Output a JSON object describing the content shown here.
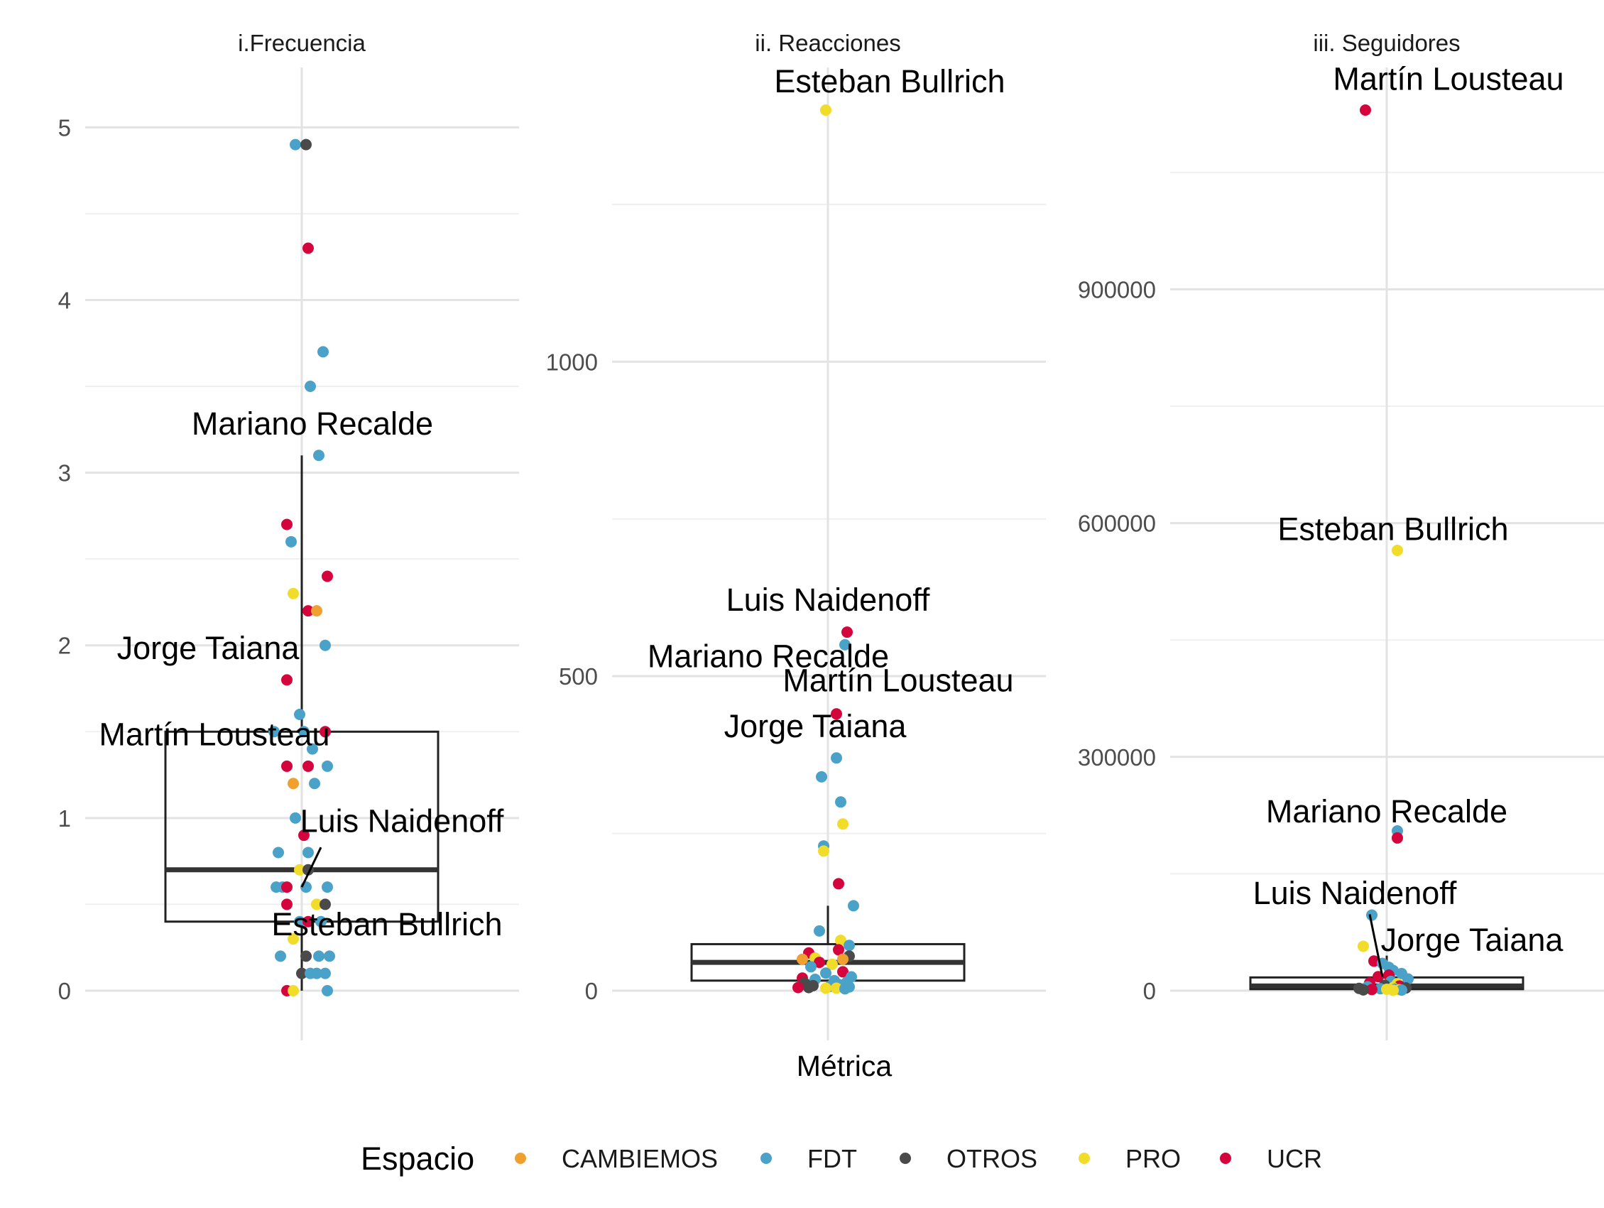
{
  "chart_data": {
    "type": "scatter",
    "x_title": "Métrica",
    "colors": {
      "CAMBIEMOS": "#F0A030",
      "FDT": "#4BA2C9",
      "OTROS": "#4A4A4A",
      "PRO": "#F2DC2A",
      "UCR": "#D4043C"
    },
    "legend": {
      "title": "Espacio",
      "position": "bottom",
      "items": [
        "CAMBIEMOS",
        "FDT",
        "OTROS",
        "PRO",
        "UCR"
      ]
    },
    "panels": [
      {
        "title": "i.Frecuencia",
        "ylim": [
          0,
          5.1
        ],
        "yticks": [
          0,
          1,
          2,
          3,
          4,
          5
        ],
        "box": {
          "q1": 0.4,
          "median": 0.7,
          "q3": 1.5,
          "whisker_low": 0.0,
          "whisker_high": 3.1
        },
        "points": [
          {
            "j": -0.03,
            "v": 4.9,
            "e": "FDT"
          },
          {
            "j": 0.02,
            "v": 4.9,
            "e": "OTROS"
          },
          {
            "j": 0.03,
            "v": 4.3,
            "e": "UCR"
          },
          {
            "j": 0.1,
            "v": 3.7,
            "e": "FDT"
          },
          {
            "j": 0.04,
            "v": 3.5,
            "e": "FDT"
          },
          {
            "j": 0.08,
            "v": 3.1,
            "e": "FDT"
          },
          {
            "j": -0.07,
            "v": 2.7,
            "e": "UCR"
          },
          {
            "j": -0.05,
            "v": 2.6,
            "e": "FDT"
          },
          {
            "j": 0.12,
            "v": 2.4,
            "e": "UCR"
          },
          {
            "j": -0.04,
            "v": 2.3,
            "e": "PRO"
          },
          {
            "j": 0.03,
            "v": 2.2,
            "e": "UCR"
          },
          {
            "j": 0.07,
            "v": 2.2,
            "e": "CAMBIEMOS"
          },
          {
            "j": 0.11,
            "v": 2.0,
            "e": "FDT"
          },
          {
            "j": -0.07,
            "v": 1.8,
            "e": "UCR"
          },
          {
            "j": -0.01,
            "v": 1.6,
            "e": "FDT"
          },
          {
            "j": -0.13,
            "v": 1.5,
            "e": "FDT"
          },
          {
            "j": 0.01,
            "v": 1.5,
            "e": "FDT"
          },
          {
            "j": 0.11,
            "v": 1.5,
            "e": "UCR"
          },
          {
            "j": 0.05,
            "v": 1.4,
            "e": "FDT"
          },
          {
            "j": -0.07,
            "v": 1.3,
            "e": "UCR"
          },
          {
            "j": 0.03,
            "v": 1.3,
            "e": "UCR"
          },
          {
            "j": 0.12,
            "v": 1.3,
            "e": "FDT"
          },
          {
            "j": -0.04,
            "v": 1.2,
            "e": "CAMBIEMOS"
          },
          {
            "j": 0.06,
            "v": 1.2,
            "e": "FDT"
          },
          {
            "j": -0.03,
            "v": 1.0,
            "e": "FDT"
          },
          {
            "j": 0.01,
            "v": 0.9,
            "e": "UCR"
          },
          {
            "j": -0.11,
            "v": 0.8,
            "e": "FDT"
          },
          {
            "j": 0.03,
            "v": 0.8,
            "e": "FDT"
          },
          {
            "j": -0.01,
            "v": 0.7,
            "e": "PRO"
          },
          {
            "j": 0.03,
            "v": 0.7,
            "e": "OTROS"
          },
          {
            "j": -0.12,
            "v": 0.6,
            "e": "FDT"
          },
          {
            "j": -0.09,
            "v": 0.6,
            "e": "FDT"
          },
          {
            "j": -0.07,
            "v": 0.6,
            "e": "UCR"
          },
          {
            "j": 0.02,
            "v": 0.6,
            "e": "FDT"
          },
          {
            "j": 0.12,
            "v": 0.6,
            "e": "FDT"
          },
          {
            "j": -0.07,
            "v": 0.5,
            "e": "UCR"
          },
          {
            "j": 0.07,
            "v": 0.5,
            "e": "PRO"
          },
          {
            "j": 0.11,
            "v": 0.5,
            "e": "OTROS"
          },
          {
            "j": -0.01,
            "v": 0.4,
            "e": "FDT"
          },
          {
            "j": 0.03,
            "v": 0.4,
            "e": "UCR"
          },
          {
            "j": 0.09,
            "v": 0.4,
            "e": "FDT"
          },
          {
            "j": -0.04,
            "v": 0.3,
            "e": "PRO"
          },
          {
            "j": -0.1,
            "v": 0.2,
            "e": "FDT"
          },
          {
            "j": 0.02,
            "v": 0.2,
            "e": "OTROS"
          },
          {
            "j": 0.08,
            "v": 0.2,
            "e": "FDT"
          },
          {
            "j": 0.13,
            "v": 0.2,
            "e": "FDT"
          },
          {
            "j": 0.0,
            "v": 0.1,
            "e": "OTROS"
          },
          {
            "j": 0.04,
            "v": 0.1,
            "e": "FDT"
          },
          {
            "j": 0.07,
            "v": 0.1,
            "e": "FDT"
          },
          {
            "j": 0.11,
            "v": 0.1,
            "e": "FDT"
          },
          {
            "j": -0.07,
            "v": 0.0,
            "e": "UCR"
          },
          {
            "j": -0.04,
            "v": 0.0,
            "e": "PRO"
          },
          {
            "j": 0.12,
            "v": 0.0,
            "e": "FDT"
          }
        ],
        "labels": [
          {
            "text": "Mariano Recalde",
            "j": 0.05,
            "v": 3.22
          },
          {
            "text": "Jorge Taiana",
            "j": -0.44,
            "v": 1.92
          },
          {
            "text": "Martín Lousteau",
            "j": -0.41,
            "v": 1.42
          },
          {
            "text": "Luis Naidenoff",
            "j": 0.47,
            "v": 0.92
          },
          {
            "text": "Esteban Bullrich",
            "j": 0.4,
            "v": 0.32
          }
        ],
        "segments": [
          {
            "j1": 0.09,
            "v1": 0.83,
            "j2": 0.0,
            "v2": 0.6
          }
        ]
      },
      {
        "title": "ii. Reacciones",
        "ylim": [
          0,
          1400
        ],
        "yticks": [
          0,
          500,
          1000
        ],
        "box": {
          "q1": 16,
          "median": 45,
          "q3": 74,
          "whisker_low": 0,
          "whisker_high": 135
        },
        "points": [
          {
            "j": -0.01,
            "v": 1400,
            "e": "PRO"
          },
          {
            "j": 0.09,
            "v": 570,
            "e": "UCR"
          },
          {
            "j": 0.08,
            "v": 550,
            "e": "FDT"
          },
          {
            "j": 0.04,
            "v": 440,
            "e": "UCR"
          },
          {
            "j": 0.04,
            "v": 370,
            "e": "FDT"
          },
          {
            "j": -0.03,
            "v": 340,
            "e": "FDT"
          },
          {
            "j": 0.06,
            "v": 300,
            "e": "FDT"
          },
          {
            "j": 0.07,
            "v": 265,
            "e": "PRO"
          },
          {
            "j": -0.02,
            "v": 230,
            "e": "FDT"
          },
          {
            "j": -0.02,
            "v": 222,
            "e": "PRO"
          },
          {
            "j": 0.05,
            "v": 170,
            "e": "UCR"
          },
          {
            "j": 0.12,
            "v": 135,
            "e": "FDT"
          },
          {
            "j": -0.04,
            "v": 95,
            "e": "FDT"
          },
          {
            "j": 0.06,
            "v": 80,
            "e": "PRO"
          },
          {
            "j": 0.1,
            "v": 72,
            "e": "FDT"
          },
          {
            "j": 0.05,
            "v": 65,
            "e": "UCR"
          },
          {
            "j": -0.09,
            "v": 60,
            "e": "UCR"
          },
          {
            "j": 0.1,
            "v": 55,
            "e": "OTROS"
          },
          {
            "j": -0.12,
            "v": 50,
            "e": "CAMBIEMOS"
          },
          {
            "j": -0.06,
            "v": 52,
            "e": "PRO"
          },
          {
            "j": 0.07,
            "v": 50,
            "e": "CAMBIEMOS"
          },
          {
            "j": -0.04,
            "v": 45,
            "e": "UCR"
          },
          {
            "j": 0.02,
            "v": 42,
            "e": "PRO"
          },
          {
            "j": -0.08,
            "v": 38,
            "e": "FDT"
          },
          {
            "j": 0.07,
            "v": 30,
            "e": "UCR"
          },
          {
            "j": -0.01,
            "v": 28,
            "e": "FDT"
          },
          {
            "j": 0.11,
            "v": 22,
            "e": "FDT"
          },
          {
            "j": -0.12,
            "v": 20,
            "e": "UCR"
          },
          {
            "j": -0.06,
            "v": 18,
            "e": "FDT"
          },
          {
            "j": 0.03,
            "v": 16,
            "e": "FDT"
          },
          {
            "j": 0.09,
            "v": 14,
            "e": "FDT"
          },
          {
            "j": -0.11,
            "v": 12,
            "e": "OTROS"
          },
          {
            "j": 0.05,
            "v": 10,
            "e": "FDT"
          },
          {
            "j": -0.07,
            "v": 8,
            "e": "OTROS"
          },
          {
            "j": 0.01,
            "v": 7,
            "e": "FDT"
          },
          {
            "j": 0.1,
            "v": 6,
            "e": "FDT"
          },
          {
            "j": -0.14,
            "v": 5,
            "e": "UCR"
          },
          {
            "j": -0.09,
            "v": 5,
            "e": "OTROS"
          },
          {
            "j": -0.01,
            "v": 4,
            "e": "PRO"
          },
          {
            "j": 0.04,
            "v": 4,
            "e": "PRO"
          },
          {
            "j": 0.08,
            "v": 3,
            "e": "FDT"
          }
        ],
        "labels": [
          {
            "text": "Esteban Bullrich",
            "j": 0.29,
            "v": 1428
          },
          {
            "text": "Luis Naidenoff",
            "j": 0.0,
            "v": 604
          },
          {
            "text": "Mariano Recalde",
            "j": -0.28,
            "v": 514
          },
          {
            "text": "Martín Lousteau",
            "j": 0.33,
            "v": 476
          },
          {
            "text": "Jorge Taiana",
            "j": -0.06,
            "v": 403
          }
        ],
        "segments": []
      },
      {
        "title": "iii. Seguidores",
        "ylim": [
          0,
          1130000
        ],
        "yticks": [
          0,
          300000,
          600000,
          900000
        ],
        "box": {
          "q1": 2000,
          "median": 6000,
          "q3": 17000,
          "whisker_low": 0,
          "whisker_high": 45000
        },
        "points": [
          {
            "j": -0.1,
            "v": 1130000,
            "e": "UCR"
          },
          {
            "j": 0.05,
            "v": 565000,
            "e": "PRO"
          },
          {
            "j": 0.05,
            "v": 205000,
            "e": "FDT"
          },
          {
            "j": 0.05,
            "v": 196000,
            "e": "UCR"
          },
          {
            "j": -0.07,
            "v": 97000,
            "e": "FDT"
          },
          {
            "j": -0.11,
            "v": 57000,
            "e": "PRO"
          },
          {
            "j": -0.06,
            "v": 38000,
            "e": "UCR"
          },
          {
            "j": -0.02,
            "v": 35000,
            "e": "FDT"
          },
          {
            "j": 0.01,
            "v": 30000,
            "e": "FDT"
          },
          {
            "j": 0.03,
            "v": 26000,
            "e": "FDT"
          },
          {
            "j": 0.07,
            "v": 22000,
            "e": "FDT"
          },
          {
            "j": 0.01,
            "v": 20000,
            "e": "UCR"
          },
          {
            "j": -0.04,
            "v": 18000,
            "e": "UCR"
          },
          {
            "j": 0.1,
            "v": 15000,
            "e": "FDT"
          },
          {
            "j": 0.02,
            "v": 12000,
            "e": "FDT"
          },
          {
            "j": -0.08,
            "v": 10000,
            "e": "UCR"
          },
          {
            "j": 0.05,
            "v": 9000,
            "e": "PRO"
          },
          {
            "j": -0.01,
            "v": 7000,
            "e": "OTROS"
          },
          {
            "j": 0.06,
            "v": 6000,
            "e": "UCR"
          },
          {
            "j": -0.09,
            "v": 5000,
            "e": "FDT"
          },
          {
            "j": 0.03,
            "v": 4000,
            "e": "PRO"
          },
          {
            "j": 0.09,
            "v": 3500,
            "e": "OTROS"
          },
          {
            "j": -0.13,
            "v": 3000,
            "e": "OTROS"
          },
          {
            "j": -0.03,
            "v": 2500,
            "e": "FDT"
          },
          {
            "j": 0.04,
            "v": 2000,
            "e": "FDT"
          },
          {
            "j": 0.0,
            "v": 1800,
            "e": "PRO"
          },
          {
            "j": -0.07,
            "v": 1500,
            "e": "UCR"
          },
          {
            "j": 0.06,
            "v": 1200,
            "e": "PRO"
          },
          {
            "j": -0.11,
            "v": 1000,
            "e": "OTROS"
          },
          {
            "j": 0.07,
            "v": 800,
            "e": "FDT"
          },
          {
            "j": 0.03,
            "v": 500,
            "e": "PRO"
          }
        ],
        "labels": [
          {
            "text": "Martín Lousteau",
            "j": 0.29,
            "v": 1156000
          },
          {
            "text": "Esteban Bullrich",
            "j": 0.03,
            "v": 578000
          },
          {
            "text": "Mariano Recalde",
            "j": 0.0,
            "v": 216000
          },
          {
            "text": "Luis Naidenoff",
            "j": -0.15,
            "v": 111000
          },
          {
            "text": "Jorge Taiana",
            "j": 0.4,
            "v": 51000
          }
        ],
        "segments": [
          {
            "j1": -0.08,
            "v1": 98000,
            "j2": -0.02,
            "v2": 18000
          }
        ]
      }
    ]
  }
}
